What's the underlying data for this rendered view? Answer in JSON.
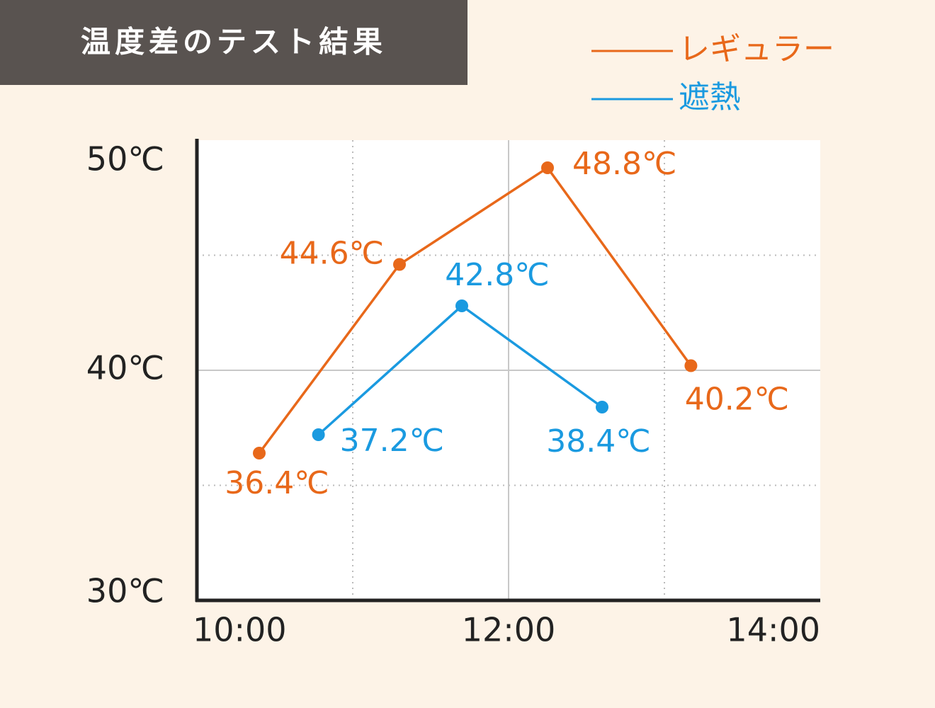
{
  "chart_data": {
    "type": "line",
    "title": "温度差のテスト結果",
    "x_is_time_hours": true,
    "xlim": [
      10,
      14
    ],
    "xticks": [
      {
        "value": 10,
        "label": "10:00"
      },
      {
        "value": 12,
        "label": "12:00"
      },
      {
        "value": 14,
        "label": "14:00"
      }
    ],
    "minor_xticks": [
      11,
      13
    ],
    "ylim": [
      30,
      50
    ],
    "yticks": [
      {
        "value": 30,
        "label": "30℃"
      },
      {
        "value": 40,
        "label": "40℃"
      },
      {
        "value": 50,
        "label": "50℃"
      }
    ],
    "minor_yticks": [
      35,
      45
    ],
    "grid": true,
    "legend": "top-right",
    "series": [
      {
        "name": "レギュラー",
        "color": "#e8681a",
        "x": [
          10.4,
          11.3,
          12.25,
          13.17
        ],
        "values": [
          36.4,
          44.6,
          48.8,
          40.2
        ],
        "value_labels": [
          "36.4℃",
          "44.6℃",
          "48.8℃",
          "40.2℃"
        ]
      },
      {
        "name": "遮熱",
        "color": "#1a9ae0",
        "x": [
          10.78,
          11.7,
          12.6
        ],
        "values": [
          37.2,
          42.8,
          38.4
        ],
        "value_labels": [
          "37.2℃",
          "42.8℃",
          "38.4℃"
        ]
      }
    ]
  }
}
